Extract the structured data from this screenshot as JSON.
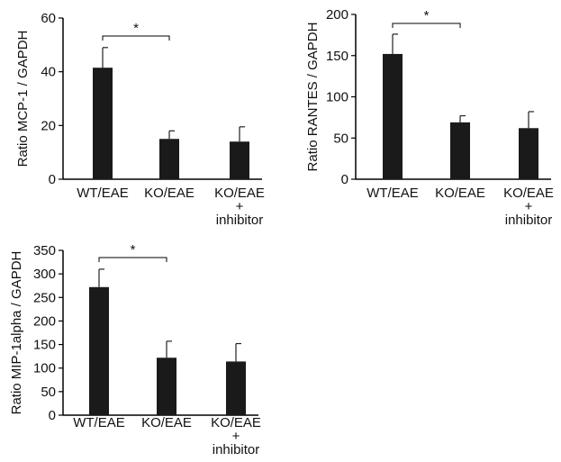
{
  "chart_data": [
    {
      "type": "bar",
      "categories": [
        [
          "WT/EAE"
        ],
        [
          "KO/EAE"
        ],
        [
          "KO/EAE",
          "+",
          "inhibitor"
        ]
      ],
      "values": [
        41.5,
        15,
        14
      ],
      "errors": [
        7.5,
        3,
        5.5
      ],
      "ylabel": "Ratio MCP-1 / GAPDH",
      "ylim": [
        0,
        60
      ],
      "yticks": [
        0,
        20,
        40,
        60
      ],
      "significance": {
        "from": 0,
        "to": 1,
        "label": "*"
      },
      "bar_color": "#1a1a1a"
    },
    {
      "type": "bar",
      "categories": [
        [
          "WT/EAE"
        ],
        [
          "KO/EAE"
        ],
        [
          "KO/EAE",
          "+",
          "inhibitor"
        ]
      ],
      "values": [
        152,
        69,
        62
      ],
      "errors": [
        24,
        8,
        20
      ],
      "ylabel": "Ratio RANTES / GAPDH",
      "ylim": [
        0,
        200
      ],
      "yticks": [
        0,
        50,
        100,
        150,
        200
      ],
      "significance": {
        "from": 0,
        "to": 1,
        "label": "*"
      },
      "bar_color": "#1a1a1a"
    },
    {
      "type": "bar",
      "categories": [
        [
          "WT/EAE"
        ],
        [
          "KO/EAE"
        ],
        [
          "KO/EAE",
          "+",
          "inhibitor"
        ]
      ],
      "values": [
        272,
        122,
        114
      ],
      "errors": [
        38,
        35,
        38
      ],
      "ylabel": "Ratio MIP-1alpha / GAPDH",
      "ylim": [
        0,
        350
      ],
      "yticks": [
        0,
        50,
        100,
        150,
        200,
        250,
        300,
        350
      ],
      "significance": {
        "from": 0,
        "to": 1,
        "label": "*"
      },
      "bar_color": "#1a1a1a"
    }
  ]
}
